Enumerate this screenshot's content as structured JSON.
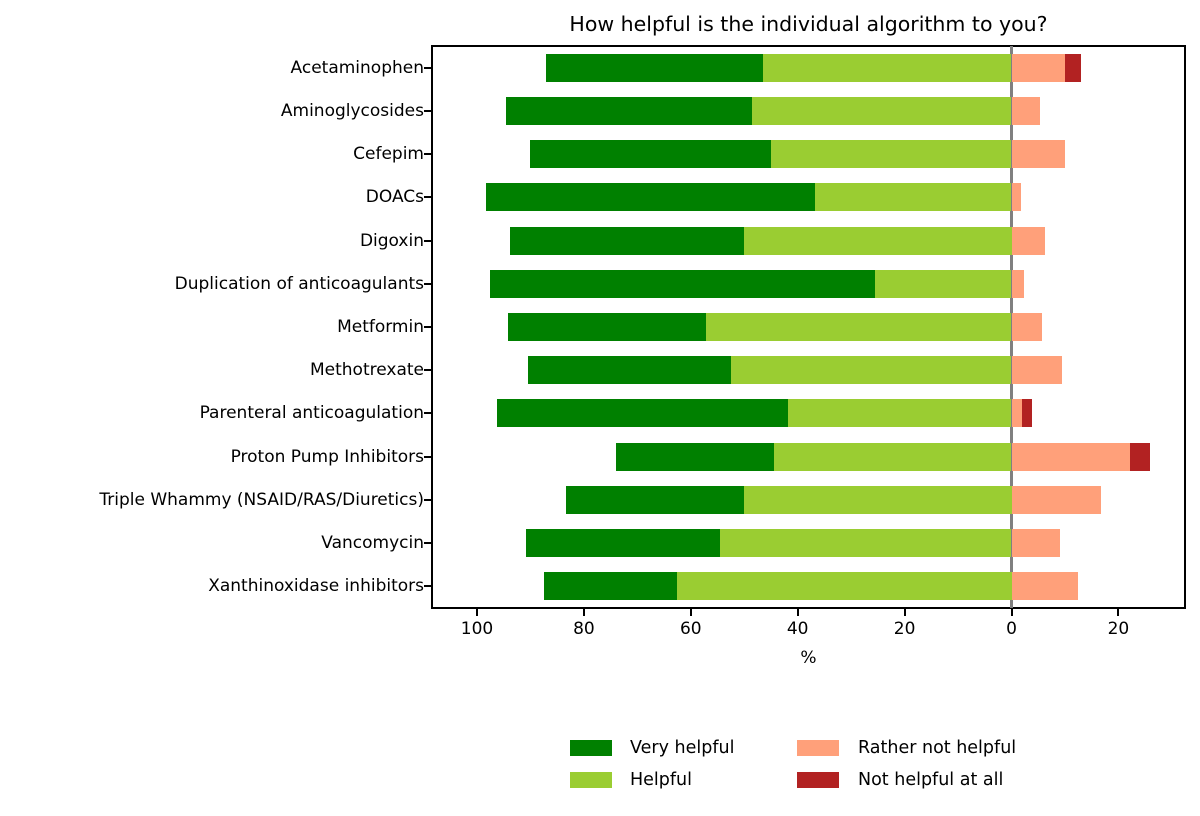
{
  "chart_data": {
    "type": "bar",
    "orientation": "horizontal",
    "stacked": true,
    "diverging": true,
    "title": "How helpful is the individual algorithm to you?",
    "xlabel": "%",
    "x_tick_labels": [
      "100",
      "80",
      "60",
      "40",
      "20",
      "0",
      "20"
    ],
    "x_tick_values": [
      100,
      80,
      60,
      40,
      20,
      0,
      -20
    ],
    "axis_note": "Values are percentages; positive (helpful) responses extend left of the zero line, negative responses extend right",
    "xlim": [
      108.5,
      -32.5
    ],
    "grid": false,
    "zero_line_color": "#808080",
    "categories": [
      "Acetaminophen",
      "Aminoglycosides",
      "Cefepim",
      "DOACs",
      "Digoxin",
      "Duplication of anticoagulants",
      "Metformin",
      "Methotrexate",
      "Parenteral anticoagulation",
      "Proton Pump Inhibitors",
      "Triple Whammy (NSAID/RAS/Diuretics)",
      "Vancomycin",
      "Xanthinoxidase inhibitors"
    ],
    "series": [
      {
        "name": "Very helpful",
        "color": "#008000",
        "values": [
          40.6,
          45.9,
          45.0,
          61.7,
          43.8,
          72.0,
          37.1,
          38.1,
          54.3,
          29.6,
          33.3,
          36.4,
          25.0
        ]
      },
      {
        "name": "Helpful",
        "color": "#9ACD32",
        "values": [
          46.4,
          48.6,
          45.0,
          36.7,
          50.0,
          25.6,
          57.1,
          52.4,
          41.9,
          44.4,
          50.0,
          54.5,
          62.5
        ]
      },
      {
        "name": "Rather not helpful",
        "color": "#FFA07A",
        "values": [
          10.1,
          5.4,
          10.0,
          1.7,
          6.3,
          2.4,
          5.7,
          9.5,
          1.9,
          22.2,
          16.7,
          9.1,
          12.5
        ]
      },
      {
        "name": "Not helpful at all",
        "color": "#B22222",
        "values": [
          2.9,
          0,
          0,
          0,
          0,
          0,
          0,
          0,
          1.9,
          3.7,
          0,
          0,
          0
        ]
      }
    ],
    "legend": {
      "position": "below-chart",
      "columns": 2,
      "entries": [
        "Very helpful",
        "Helpful",
        "Rather not helpful",
        "Not helpful at all"
      ]
    }
  }
}
